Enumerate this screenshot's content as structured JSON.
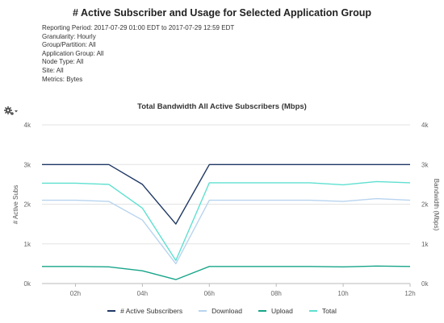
{
  "report": {
    "title": "# Active Subscriber and Usage for Selected Application Group",
    "meta": [
      "Reporting Period: 2017-07-29 01:00 EDT to 2017-07-29 12:59 EDT",
      "Granularity: Hourly",
      "Group/Partition: All",
      "Application Group: All",
      "Node Type: All",
      "Site: All",
      "Metrics: Bytes"
    ]
  },
  "toolbar": {
    "gear_icon": "gear-icon",
    "dropdown_icon": "caret-down-icon"
  },
  "chart_data": {
    "type": "line",
    "title": "Total Bandwidth All Active Subscribers (Mbps)",
    "ylabel_left": "# Active Subs",
    "ylabel_right": "Bandwidth (Mbps)",
    "xlim": [
      1,
      12
    ],
    "ylim": [
      0,
      4000
    ],
    "xticks": [
      2,
      4,
      6,
      8,
      10,
      12
    ],
    "xtick_labels": [
      "02h",
      "04h",
      "06h",
      "08h",
      "10h",
      "12h"
    ],
    "yticks": [
      0,
      1000,
      2000,
      3000,
      4000
    ],
    "ytick_labels": [
      "0k",
      "1k",
      "2k",
      "3k",
      "4k"
    ],
    "grid": true,
    "legend_position": "bottom",
    "x": [
      1,
      2,
      3,
      4,
      5,
      6,
      7,
      8,
      9,
      10,
      11,
      12
    ],
    "series": [
      {
        "name": "# Active Subscribers",
        "color": "#1f3864",
        "axis": "left",
        "values": [
          3000,
          3000,
          3000,
          2500,
          1500,
          3000,
          3000,
          3000,
          3000,
          3000,
          3000,
          3000
        ]
      },
      {
        "name": "Download",
        "color": "#b8d4ef",
        "axis": "right",
        "values": [
          2100,
          2100,
          2070,
          1600,
          500,
          2100,
          2100,
          2100,
          2100,
          2070,
          2140,
          2100
        ]
      },
      {
        "name": "Upload",
        "color": "#17a589",
        "axis": "right",
        "values": [
          430,
          430,
          420,
          320,
          100,
          430,
          430,
          430,
          430,
          420,
          440,
          430
        ]
      },
      {
        "name": "Total",
        "color": "#5ee0d0",
        "axis": "right",
        "values": [
          2530,
          2530,
          2500,
          1900,
          580,
          2540,
          2540,
          2540,
          2540,
          2490,
          2570,
          2540
        ]
      }
    ]
  }
}
